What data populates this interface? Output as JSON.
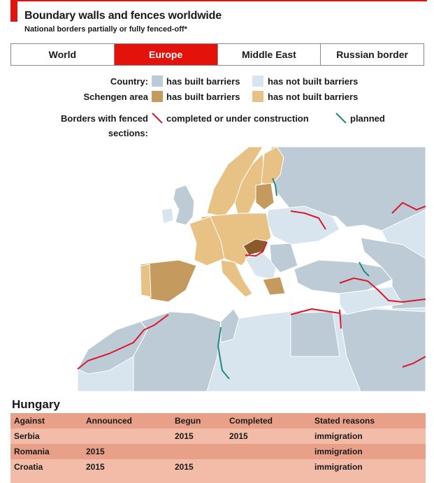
{
  "header": {
    "title": "Boundary walls and fences worldwide",
    "subtitle": "National borders partially or fully fenced-off*"
  },
  "tabs": [
    {
      "label": "World",
      "active": false
    },
    {
      "label": "Europe",
      "active": true
    },
    {
      "label": "Middle East",
      "active": false
    },
    {
      "label": "Russian border",
      "active": false
    }
  ],
  "legend": {
    "country_label": "Country:",
    "schengen_label": "Schengen area",
    "built": "has built barriers",
    "not_built": "has not built barriers",
    "borders_label_line1": "Borders with fenced",
    "borders_label_line2": "sections:",
    "completed": "completed or under construction",
    "planned": "planned",
    "colors": {
      "country_built": "#bccbd6",
      "country_not_built": "#d8e5ef",
      "schengen_built": "#c49a5e",
      "schengen_not_built": "#e8c285",
      "fence_completed": "#d9192a",
      "fence_planned": "#1f8a84",
      "highlight_hungary": "#8b5a2b",
      "sea": "#ffffff"
    }
  },
  "table": {
    "title": "Hungary",
    "headers": [
      "Against",
      "Announced",
      "Begun",
      "Completed",
      "Stated reasons"
    ],
    "rows": [
      [
        "Serbia",
        "",
        "2015",
        "2015",
        "immigration"
      ],
      [
        "Romania",
        "2015",
        "",
        "",
        "immigration"
      ],
      [
        "Croatia",
        "2015",
        "2015",
        "",
        "immigration"
      ]
    ]
  }
}
